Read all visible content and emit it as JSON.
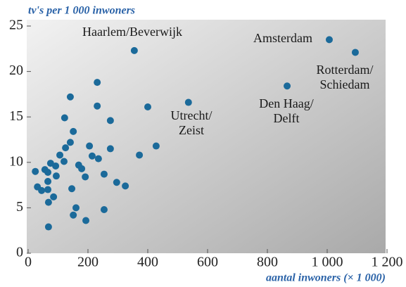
{
  "chart_data": {
    "type": "scatter",
    "title": "tv's per 1 000 inwoners",
    "x_label": "aantal inwoners (× 1 000)",
    "color": "#1b6a9a",
    "xlim": [
      0,
      1200
    ],
    "ylim": [
      0,
      25
    ],
    "xticks": [
      0,
      200,
      400,
      600,
      800,
      {
        "value": 1000,
        "label": "1 000"
      },
      {
        "value": 1200,
        "label": "1 200"
      }
    ],
    "yticks": [
      0,
      5,
      10,
      15,
      20,
      25
    ],
    "x": [
      355,
      1007,
      1094,
      866,
      536,
      141,
      231,
      231,
      122,
      275,
      151,
      400,
      428,
      372,
      275,
      205,
      214,
      235,
      141,
      125,
      106,
      120,
      75,
      92,
      56,
      24,
      66,
      169,
      179,
      254,
      191,
      94,
      66,
      31,
      45,
      66,
      146,
      296,
      325,
      85,
      68,
      160,
      254,
      151,
      193,
      68
    ],
    "y": [
      22.3,
      23.5,
      22.1,
      18.4,
      16.6,
      17.2,
      18.8,
      16.2,
      14.9,
      14.6,
      13.4,
      16.1,
      11.8,
      10.8,
      11.5,
      11.8,
      10.7,
      10.4,
      12.2,
      11.6,
      10.8,
      10.1,
      9.9,
      9.6,
      9.2,
      9.0,
      8.9,
      9.7,
      9.3,
      8.7,
      8.4,
      8.5,
      7.9,
      7.3,
      6.9,
      7.0,
      7.1,
      7.8,
      7.4,
      6.2,
      5.6,
      5.0,
      4.8,
      4.2,
      3.6,
      2.9
    ],
    "annotations": [
      [
        "Haarlem/Beverwijk"
      ],
      [
        "Amsterdam"
      ],
      [
        "Rotterdam/",
        "Schiedam"
      ],
      [
        "Den Haag/",
        "Delft"
      ],
      [
        "Utrecht/",
        "Zeist"
      ]
    ]
  }
}
